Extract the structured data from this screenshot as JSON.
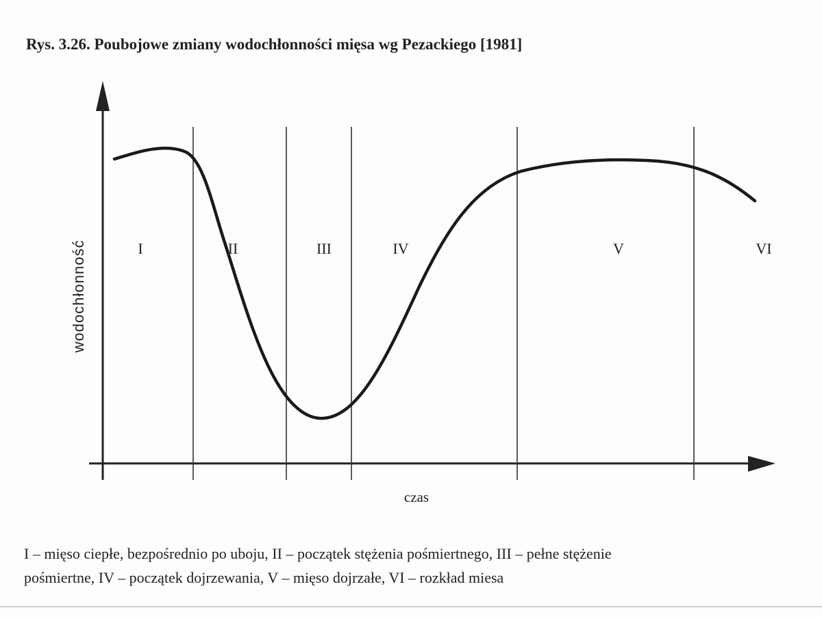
{
  "title": "Rys. 3.26. Poubojowe zmiany wodochłonności mięsa wg Pezackiego [1981]",
  "diagram": {
    "y_axis_label": "wodochłonność",
    "x_axis_label": "czas",
    "regions": [
      "I",
      "II",
      "III",
      "IV",
      "V",
      "VI"
    ]
  },
  "caption": [
    "I – mięso ciepłe, bezpośrednio po uboju, II – początek stężenia pośmiertnego, III – pełne stężenie",
    "pośmiertne, IV – początek dojrzewania, V – mięso dojrzałe, VI – rozkład miesa"
  ]
}
